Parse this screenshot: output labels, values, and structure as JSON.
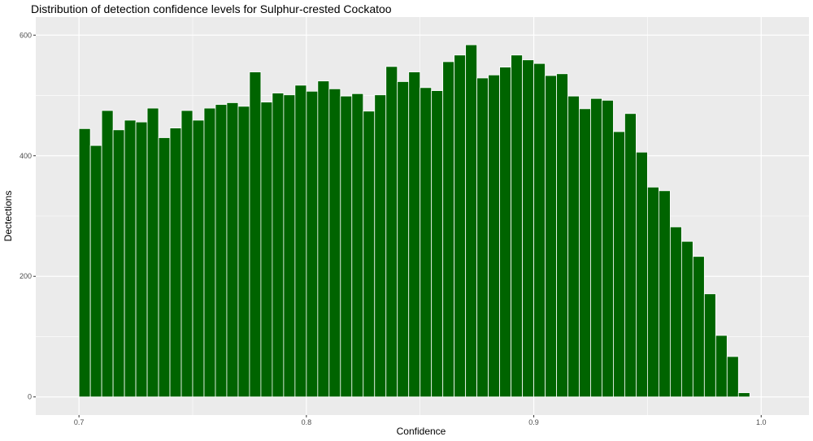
{
  "chart_data": {
    "type": "bar",
    "title": "Distribution of detection confidence levels for Sulphur-crested Cockatoo",
    "xlabel": "Confidence",
    "ylabel": "Dectections",
    "xlim": [
      0.681,
      1.021
    ],
    "ylim": [
      -30,
      630
    ],
    "x_ticks": [
      0.7,
      0.8,
      0.9,
      1.0
    ],
    "x_tick_labels": [
      "0.7",
      "0.8",
      "0.9",
      "1.0"
    ],
    "y_ticks": [
      0,
      200,
      400,
      600
    ],
    "y_tick_labels": [
      "0",
      "200",
      "400",
      "600"
    ],
    "bin_width": 0.005,
    "x": [
      0.7025,
      0.7075,
      0.7125,
      0.7175,
      0.7225,
      0.7275,
      0.7325,
      0.7375,
      0.7425,
      0.7475,
      0.7525,
      0.7575,
      0.7625,
      0.7675,
      0.7725,
      0.7775,
      0.7825,
      0.7875,
      0.7925,
      0.7975,
      0.8025,
      0.8075,
      0.8125,
      0.8175,
      0.8225,
      0.8275,
      0.8325,
      0.8375,
      0.8425,
      0.8475,
      0.8525,
      0.8575,
      0.8625,
      0.8675,
      0.8725,
      0.8775,
      0.8825,
      0.8875,
      0.8925,
      0.8975,
      0.9025,
      0.9075,
      0.9125,
      0.9175,
      0.9225,
      0.9275,
      0.9325,
      0.9375,
      0.9425,
      0.9475,
      0.9525,
      0.9575,
      0.9625,
      0.9675,
      0.9725,
      0.9775,
      0.9825,
      0.9875,
      0.9925,
      0.9975
    ],
    "values": [
      445,
      417,
      475,
      443,
      459,
      456,
      479,
      430,
      446,
      475,
      459,
      479,
      485,
      488,
      482,
      539,
      489,
      504,
      501,
      517,
      507,
      524,
      511,
      499,
      503,
      474,
      501,
      548,
      523,
      539,
      513,
      508,
      556,
      567,
      584,
      529,
      534,
      547,
      567,
      559,
      553,
      533,
      536,
      499,
      478,
      495,
      492,
      440,
      470,
      406,
      348,
      342,
      282,
      258,
      233,
      171,
      102,
      67,
      7,
      0
    ],
    "bar_color": "#006400",
    "panel_color": "#ebebeb",
    "grid": true
  }
}
